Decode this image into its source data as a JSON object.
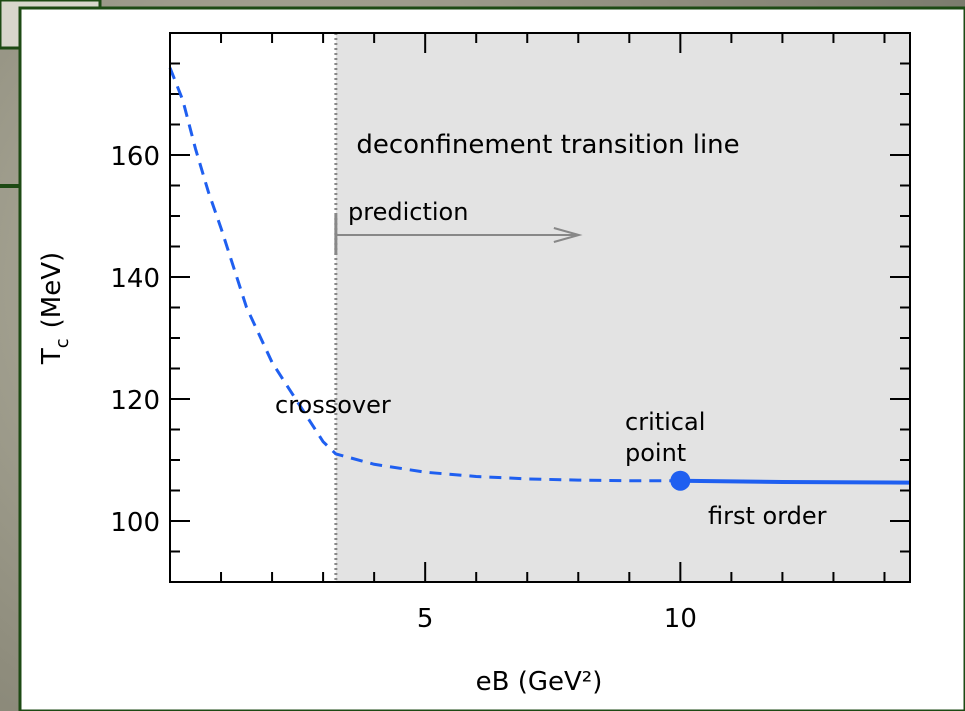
{
  "chart_data": {
    "type": "line",
    "title": "deconfinement transition line",
    "xlabel": "eB (GeV²)",
    "ylabel": {
      "main": "T",
      "sub": "c",
      "unit": "(MeV)"
    },
    "xlim": [
      0,
      14.5
    ],
    "ylim": [
      90,
      180
    ],
    "xticks": [
      5,
      10
    ],
    "yticks": [
      100,
      120,
      140,
      160
    ],
    "xminorticks": [
      1,
      2,
      3,
      4,
      6,
      7,
      8,
      9,
      11,
      12,
      13,
      14
    ],
    "yminorticks": [
      95,
      105,
      110,
      115,
      125,
      130,
      135,
      145,
      150,
      155,
      165,
      170,
      175
    ],
    "prediction_start": 3.25,
    "annotations": {
      "prediction": "prediction",
      "crossover": "crossover",
      "critical_point": [
        "critical",
        "point"
      ],
      "first_order": "first order"
    },
    "series": [
      {
        "color": "#1f5ff0",
        "dash": true,
        "x": [
          0,
          0.25,
          0.5,
          0.75,
          1,
          1.5,
          2,
          2.5,
          3,
          3.25,
          4,
          5,
          6,
          7,
          8,
          9,
          10
        ],
        "values": [
          174.3,
          169,
          161,
          154,
          148,
          135,
          126,
          119.5,
          113,
          111,
          109.3,
          108,
          107.3,
          106.9,
          106.7,
          106.6,
          106.6
        ]
      },
      {
        "color": "#1f5ff0",
        "dash": false,
        "x": [
          10,
          12,
          14.5
        ],
        "values": [
          106.6,
          106.4,
          106.3
        ]
      }
    ],
    "critical_point": {
      "x": 10,
      "y": 106.6,
      "color": "#1f5ff0"
    }
  }
}
